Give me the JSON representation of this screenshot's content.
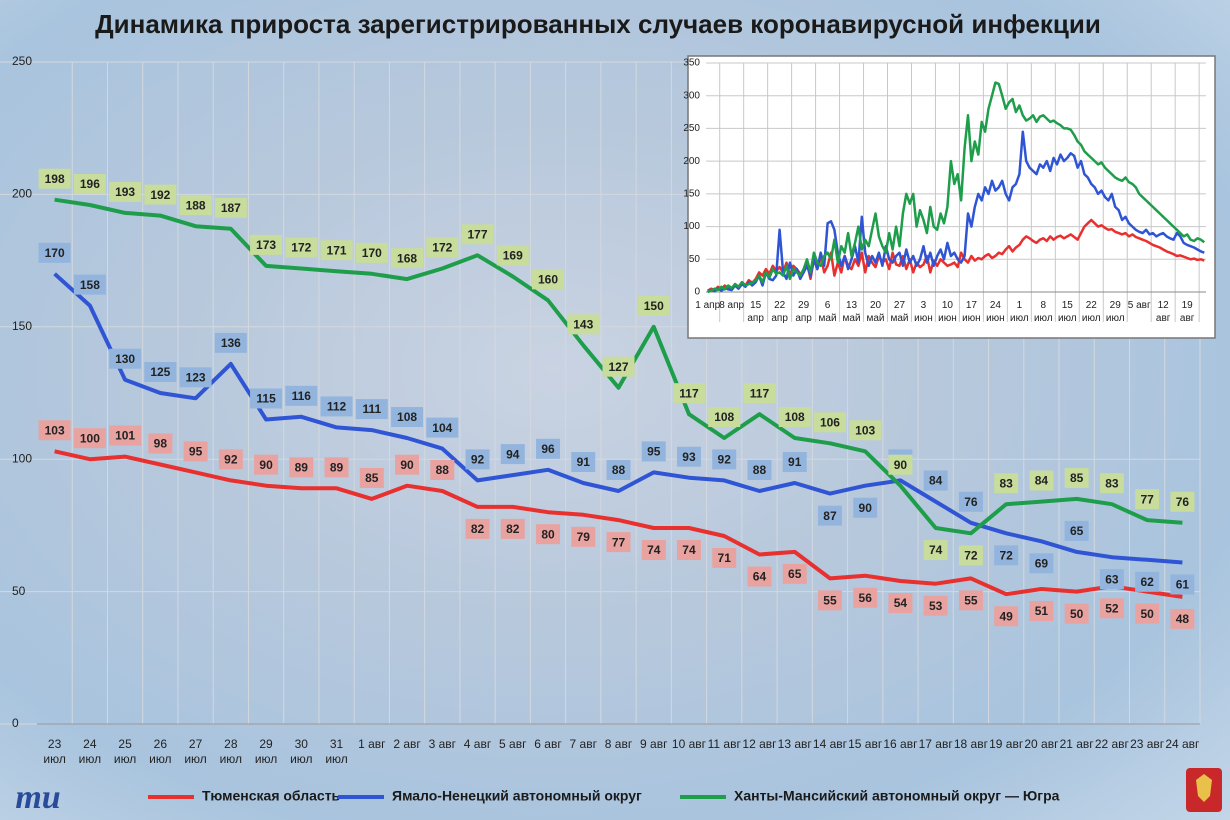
{
  "chart_data": [
    {
      "type": "line",
      "title": "Динамика прироста зарегистрированных случаев коронавирусной инфекции",
      "categories": [
        "23 июл",
        "24 июл",
        "25 июл",
        "26 июл",
        "27 июл",
        "28 июл",
        "29 июл",
        "30 июл",
        "31 июл",
        "1 авг",
        "2 авг",
        "3 авг",
        "4 авг",
        "5 авг",
        "6 авг",
        "7 авг",
        "8 авг",
        "9 авг",
        "10 авг",
        "11 авг",
        "12 авг",
        "13 авг",
        "14 авг",
        "15 авг",
        "16 авг",
        "17 авг",
        "18 авг",
        "19 авг",
        "20 авг",
        "21 авг",
        "22 авг",
        "23 авг",
        "24 авг"
      ],
      "series": [
        {
          "name": "Тюменская область",
          "color": "#e8302e",
          "label_color": "#e8a3a0",
          "values": [
            103,
            100,
            101,
            98,
            95,
            92,
            90,
            89,
            89,
            85,
            90,
            88,
            82,
            82,
            80,
            79,
            77,
            74,
            74,
            71,
            64,
            65,
            55,
            56,
            54,
            53,
            55,
            49,
            51,
            50,
            52,
            50,
            48
          ]
        },
        {
          "name": "Ямало-Ненецкий автономный округ",
          "color": "#2f55d4",
          "label_color": "#93b5dd",
          "values": [
            170,
            158,
            130,
            125,
            123,
            136,
            115,
            116,
            112,
            111,
            108,
            104,
            92,
            94,
            96,
            91,
            88,
            95,
            93,
            92,
            88,
            91,
            87,
            90,
            92,
            84,
            76,
            72,
            69,
            65,
            63,
            62,
            61
          ]
        },
        {
          "name": "Ханты-Мансийский автономный округ — Югра",
          "color": "#1e9e4a",
          "label_color": "#c8dc9c",
          "values": [
            198,
            196,
            193,
            192,
            188,
            187,
            173,
            172,
            171,
            170,
            168,
            172,
            177,
            169,
            160,
            143,
            127,
            150,
            117,
            108,
            117,
            108,
            106,
            103,
            90,
            74,
            72,
            83,
            84,
            85,
            83,
            77,
            76
          ]
        }
      ],
      "ylim": [
        0,
        250
      ],
      "yticks": [
        0,
        50,
        100,
        150,
        200,
        250
      ],
      "grid": true,
      "data_labels": true,
      "legend": "bottom",
      "logo": "mu"
    },
    {
      "type": "line",
      "categories": [
        "1 апр",
        null,
        null,
        null,
        null,
        null,
        null,
        "8 апр",
        null,
        null,
        null,
        null,
        null,
        null,
        "15 апр",
        null,
        null,
        null,
        null,
        null,
        null,
        "22 апр",
        null,
        null,
        null,
        null,
        null,
        null,
        "29 апр",
        null,
        null,
        null,
        null,
        null,
        null,
        "6 май",
        null,
        null,
        null,
        null,
        null,
        null,
        "13 май",
        null,
        null,
        null,
        null,
        null,
        null,
        "20 май",
        null,
        null,
        null,
        null,
        null,
        null,
        "27 май",
        null,
        null,
        null,
        null,
        null,
        null,
        "3 июн",
        null,
        null,
        null,
        null,
        null,
        null,
        "10 июн",
        null,
        null,
        null,
        null,
        null,
        null,
        "17 июн",
        null,
        null,
        null,
        null,
        null,
        null,
        "24 июн",
        null,
        null,
        null,
        null,
        null,
        null,
        "1 июл",
        null,
        null,
        null,
        null,
        null,
        null,
        "8 июл",
        null,
        null,
        null,
        null,
        null,
        null,
        "15 июл",
        null,
        null,
        null,
        null,
        null,
        null,
        "22 июл",
        null,
        null,
        null,
        null,
        null,
        null,
        "29 июл",
        null,
        null,
        null,
        null,
        null,
        null,
        "5 авг",
        null,
        null,
        null,
        null,
        null,
        null,
        "12 авг",
        null,
        null,
        null,
        null,
        null,
        null,
        "19 авг",
        null,
        null,
        null,
        null,
        null
      ],
      "series": [
        {
          "name": "Тюменская область",
          "color": "#e8302e",
          "values": [
            2,
            5,
            3,
            8,
            4,
            10,
            6,
            5,
            12,
            8,
            15,
            10,
            18,
            14,
            20,
            30,
            25,
            35,
            28,
            40,
            32,
            38,
            30,
            45,
            25,
            40,
            35,
            28,
            30,
            45,
            20,
            50,
            35,
            55,
            30,
            40,
            60,
            25,
            45,
            30,
            55,
            40,
            35,
            50,
            40,
            60,
            30,
            55,
            45,
            38,
            55,
            45,
            50,
            35,
            60,
            42,
            40,
            55,
            35,
            50,
            30,
            45,
            38,
            42,
            55,
            30,
            48,
            40,
            50,
            45,
            40,
            42,
            45,
            38,
            60,
            50,
            45,
            55,
            48,
            52,
            50,
            55,
            58,
            52,
            55,
            60,
            58,
            65,
            70,
            62,
            68,
            72,
            80,
            85,
            82,
            78,
            75,
            80,
            82,
            78,
            85,
            80,
            84,
            86,
            82,
            85,
            88,
            84,
            80,
            90,
            100,
            105,
            110,
            105,
            100,
            102,
            98,
            95,
            96,
            92,
            90,
            88,
            90,
            85,
            88,
            84,
            82,
            80,
            78,
            75,
            72,
            70,
            68,
            65,
            62,
            60,
            58,
            55,
            56,
            54,
            52,
            50,
            51,
            49,
            50,
            48
          ]
        },
        {
          "name": "Ямало-Ненецкий автономный округ",
          "color": "#2f55d4",
          "values": [
            0,
            3,
            1,
            5,
            2,
            6,
            4,
            3,
            10,
            5,
            12,
            8,
            15,
            10,
            15,
            25,
            10,
            30,
            20,
            18,
            25,
            95,
            30,
            20,
            45,
            25,
            35,
            20,
            30,
            40,
            25,
            50,
            35,
            60,
            40,
            105,
            108,
            95,
            60,
            40,
            55,
            35,
            50,
            70,
            45,
            115,
            60,
            40,
            55,
            45,
            60,
            40,
            70,
            50,
            45,
            55,
            60,
            40,
            65,
            45,
            55,
            40,
            50,
            70,
            45,
            60,
            40,
            55,
            65,
            50,
            75,
            55,
            60,
            50,
            45,
            55,
            120,
            100,
            130,
            150,
            140,
            160,
            150,
            170,
            155,
            160,
            170,
            150,
            140,
            160,
            165,
            180,
            245,
            200,
            190,
            185,
            180,
            195,
            190,
            200,
            185,
            205,
            195,
            210,
            200,
            205,
            212,
            208,
            190,
            200,
            180,
            175,
            165,
            160,
            150,
            155,
            145,
            140,
            150,
            130,
            125,
            110,
            115,
            105,
            100,
            95,
            92,
            90,
            95,
            88,
            90,
            85,
            88,
            90,
            85,
            82,
            80,
            90,
            85,
            75,
            72,
            70,
            68,
            65,
            62,
            60
          ]
        },
        {
          "name": "Ханты-Мансийский автономный округ — Югра",
          "color": "#1e9e4a",
          "values": [
            0,
            2,
            5,
            3,
            8,
            4,
            10,
            6,
            12,
            8,
            15,
            10,
            12,
            14,
            18,
            25,
            15,
            30,
            22,
            35,
            28,
            30,
            25,
            40,
            20,
            35,
            30,
            25,
            35,
            50,
            30,
            60,
            45,
            40,
            55,
            60,
            50,
            80,
            45,
            70,
            60,
            90,
            55,
            75,
            100,
            65,
            80,
            70,
            95,
            120,
            85,
            70,
            60,
            90,
            65,
            100,
            70,
            120,
            150,
            135,
            150,
            100,
            125,
            110,
            90,
            130,
            100,
            95,
            120,
            105,
            130,
            200,
            165,
            180,
            140,
            220,
            270,
            200,
            230,
            210,
            260,
            245,
            280,
            300,
            320,
            318,
            300,
            280,
            290,
            295,
            275,
            285,
            270,
            262,
            265,
            270,
            260,
            268,
            270,
            265,
            260,
            262,
            258,
            255,
            250,
            250,
            248,
            240,
            230,
            225,
            215,
            210,
            205,
            200,
            195,
            198,
            190,
            185,
            180,
            175,
            172,
            170,
            175,
            168,
            165,
            160,
            150,
            145,
            140,
            135,
            130,
            125,
            120,
            115,
            110,
            105,
            100,
            95,
            90,
            85,
            88,
            80,
            78,
            82,
            80,
            76
          ]
        }
      ],
      "ylim": [
        0,
        350
      ],
      "yticks": [
        0,
        50,
        100,
        150,
        200,
        250,
        300,
        350
      ],
      "grid": true
    }
  ]
}
